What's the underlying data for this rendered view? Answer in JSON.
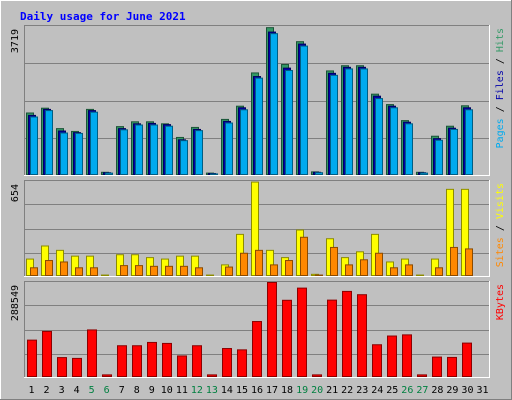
{
  "chart_data": {
    "type": "bar",
    "title": "Daily usage for June 2021",
    "categories": [
      "1",
      "2",
      "3",
      "4",
      "5",
      "6",
      "7",
      "8",
      "9",
      "10",
      "11",
      "12",
      "13",
      "14",
      "15",
      "16",
      "17",
      "18",
      "19",
      "20",
      "21",
      "22",
      "23",
      "24",
      "25",
      "26",
      "27",
      "28",
      "29",
      "30",
      "31"
    ],
    "weekend_categories": [
      "5",
      "6",
      "12",
      "13",
      "19",
      "20",
      "26",
      "27"
    ],
    "panels": [
      {
        "id": "hits",
        "max_label": "3719",
        "ymax": 3719,
        "legend": [
          "Pages",
          "Files",
          "Hits"
        ],
        "series": [
          {
            "name": "Hits",
            "color": "#339966",
            "values": [
              1560,
              1680,
              1170,
              1100,
              1650,
              80,
              1220,
              1340,
              1340,
              1290,
              950,
              1200,
              60,
              1400,
              1730,
              2560,
              3690,
              2770,
              3340,
              90,
              2610,
              2740,
              2740,
              2030,
              1770,
              1370,
              80,
              980,
              1230,
              1740,
              0
            ]
          },
          {
            "name": "Files",
            "color": "#0000aa",
            "values": [
              1500,
              1650,
              1110,
              1070,
              1620,
              70,
              1170,
              1290,
              1300,
              1270,
              890,
              1150,
              50,
              1350,
              1690,
              2470,
              3580,
              2680,
              3280,
              80,
              2550,
              2700,
              2700,
              1980,
              1730,
              1330,
              70,
              920,
              1180,
              1690,
              0
            ]
          },
          {
            "name": "Pages",
            "color": "#00aaee",
            "values": [
              1460,
              1620,
              1060,
              1050,
              1580,
              60,
              1140,
              1260,
              1260,
              1230,
              870,
              1120,
              40,
              1310,
              1640,
              2430,
              3540,
              2620,
              3230,
              70,
              2500,
              2660,
              2660,
              1920,
              1690,
              1290,
              60,
              880,
              1150,
              1640,
              0
            ]
          }
        ]
      },
      {
        "id": "visits",
        "max_label": "654",
        "ymax": 654,
        "legend": [
          "Sites",
          "Visits"
        ],
        "series": [
          {
            "name": "Visits",
            "color": "#ffff00",
            "values": [
              120,
              210,
              180,
              140,
              140,
              10,
              150,
              150,
              130,
              120,
              140,
              140,
              10,
              80,
              290,
              650,
              180,
              130,
              320,
              15,
              260,
              130,
              170,
              290,
              100,
              120,
              10,
              120,
              600,
              600,
              0
            ]
          },
          {
            "name": "Sites",
            "color": "#ff8800",
            "values": [
              60,
              110,
              100,
              60,
              60,
              5,
              75,
              75,
              70,
              70,
              70,
              60,
              5,
              65,
              160,
              180,
              80,
              110,
              270,
              10,
              200,
              80,
              115,
              160,
              60,
              80,
              5,
              60,
              200,
              190,
              0
            ]
          }
        ]
      },
      {
        "id": "kbytes",
        "max_label": "288549",
        "ymax": 288549,
        "legend": [
          "KBytes"
        ],
        "series": [
          {
            "name": "KBytes",
            "color": "#ff0000",
            "values": [
              113500,
              140000,
              60500,
              58000,
              144500,
              8000,
              96500,
              96500,
              106500,
              103500,
              65500,
              96500,
              8000,
              88000,
              84000,
              170000,
              288549,
              234500,
              271500,
              8000,
              235000,
              261500,
              251500,
              99500,
              126000,
              129500,
              8000,
              62000,
              61000,
              104500,
              0
            ]
          }
        ]
      }
    ]
  }
}
